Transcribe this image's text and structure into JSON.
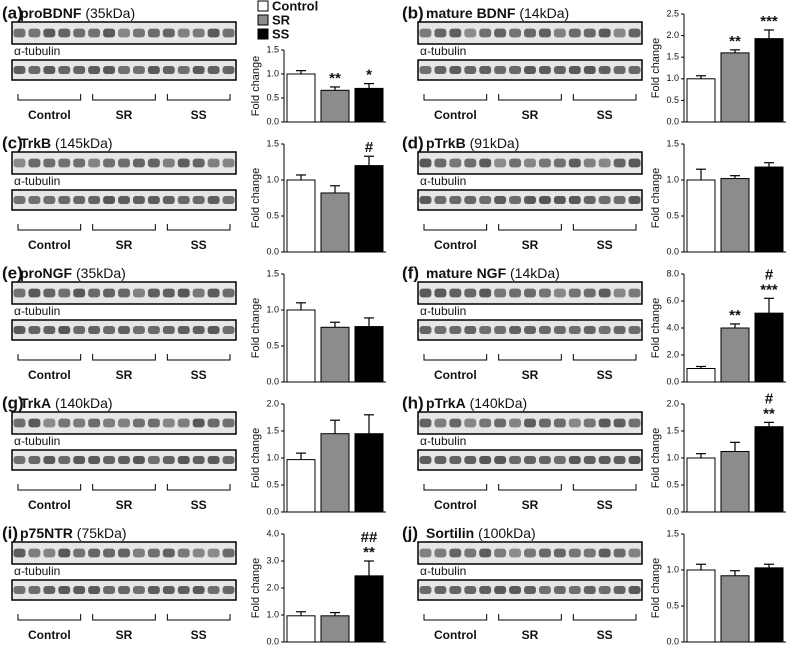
{
  "chart_data": [
    {
      "type": "bar",
      "panel": "(a)",
      "protein": "proBDNF",
      "size": "(35kDa)",
      "loading": "α-tubulin",
      "categories": [
        "Control",
        "SR",
        "SS"
      ],
      "ylabel": "Fold change",
      "values": [
        1.0,
        0.66,
        0.7
      ],
      "errors": [
        0.07,
        0.07,
        0.1
      ],
      "annotations": [
        null,
        "**",
        "*"
      ],
      "colors": [
        "#ffffff",
        "#8c8c8c",
        "#000000"
      ],
      "legend": [
        "Control",
        "SR",
        "SS"
      ],
      "ylim": [
        0,
        1.5
      ],
      "yticks": [
        {
          "value": 0,
          "label": "0.0"
        },
        {
          "value": 0.5,
          "label": "0.5"
        },
        {
          "value": 1,
          "label": "1.0"
        },
        {
          "value": 1.5,
          "label": "1.5"
        }
      ]
    },
    {
      "type": "bar",
      "panel": "(b)",
      "protein": "mature BDNF",
      "size": "(14kDa)",
      "loading": "α-tubulin",
      "categories": [
        "Control",
        "SR",
        "SS"
      ],
      "ylabel": "Fold change",
      "values": [
        1.0,
        1.6,
        1.93
      ],
      "errors": [
        0.07,
        0.07,
        0.2
      ],
      "annotations": [
        null,
        "**",
        "***"
      ],
      "colors": [
        "#ffffff",
        "#8c8c8c",
        "#000000"
      ],
      "ylim": [
        0,
        2.5
      ],
      "yticks": [
        {
          "value": 0,
          "label": "0.0"
        },
        {
          "value": 0.5,
          "label": "0.5"
        },
        {
          "value": 1,
          "label": "1.0"
        },
        {
          "value": 1.5,
          "label": "1.5"
        },
        {
          "value": 2,
          "label": "2.0"
        },
        {
          "value": 2.5,
          "label": "2.5"
        }
      ]
    },
    {
      "type": "bar",
      "panel": "(c)",
      "protein": "TrkB",
      "size": "(145kDa)",
      "loading": "α-tubulin",
      "categories": [
        "Control",
        "SR",
        "SS"
      ],
      "ylabel": "Fold change",
      "values": [
        1.0,
        0.82,
        1.2
      ],
      "errors": [
        0.07,
        0.1,
        0.13
      ],
      "annotations": [
        null,
        null,
        "#"
      ],
      "colors": [
        "#ffffff",
        "#8c8c8c",
        "#000000"
      ],
      "ylim": [
        0,
        1.5
      ],
      "yticks": [
        {
          "value": 0,
          "label": "0.0"
        },
        {
          "value": 0.5,
          "label": "0.5"
        },
        {
          "value": 1,
          "label": "1.0"
        },
        {
          "value": 1.5,
          "label": "1.5"
        }
      ]
    },
    {
      "type": "bar",
      "panel": "(d)",
      "protein": "pTrkB",
      "size": "(91kDa)",
      "loading": "α-tubulin",
      "categories": [
        "Control",
        "SR",
        "SS"
      ],
      "ylabel": "Fold change",
      "values": [
        1.0,
        1.02,
        1.18
      ],
      "errors": [
        0.15,
        0.04,
        0.06
      ],
      "annotations": [
        null,
        null,
        null
      ],
      "colors": [
        "#ffffff",
        "#8c8c8c",
        "#000000"
      ],
      "ylim": [
        0,
        1.5
      ],
      "yticks": [
        {
          "value": 0,
          "label": "0.0"
        },
        {
          "value": 0.5,
          "label": "0.5"
        },
        {
          "value": 1,
          "label": "1.0"
        },
        {
          "value": 1.5,
          "label": "1.5"
        }
      ]
    },
    {
      "type": "bar",
      "panel": "(e)",
      "protein": "proNGF",
      "size": "(35kDa)",
      "loading": "α-tubulin",
      "categories": [
        "Control",
        "SR",
        "SS"
      ],
      "ylabel": "Fold change",
      "values": [
        1.0,
        0.76,
        0.77
      ],
      "errors": [
        0.1,
        0.07,
        0.12
      ],
      "annotations": [
        null,
        null,
        null
      ],
      "colors": [
        "#ffffff",
        "#8c8c8c",
        "#000000"
      ],
      "ylim": [
        0,
        1.5
      ],
      "yticks": [
        {
          "value": 0,
          "label": "0.0"
        },
        {
          "value": 0.5,
          "label": "0.5"
        },
        {
          "value": 1,
          "label": "1.0"
        },
        {
          "value": 1.5,
          "label": "1.5"
        }
      ]
    },
    {
      "type": "bar",
      "panel": "(f)",
      "protein": "mature NGF",
      "size": "(14kDa)",
      "loading": "α-tubulin",
      "categories": [
        "Control",
        "SR",
        "SS"
      ],
      "ylabel": "Fold change",
      "values": [
        1.0,
        4.0,
        5.1
      ],
      "errors": [
        0.15,
        0.3,
        1.1
      ],
      "annotations": [
        null,
        "**",
        [
          "#",
          "***"
        ]
      ],
      "colors": [
        "#ffffff",
        "#8c8c8c",
        "#000000"
      ],
      "ylim": [
        0,
        8
      ],
      "yticks": [
        {
          "value": 0,
          "label": "0.0"
        },
        {
          "value": 2,
          "label": "2.0"
        },
        {
          "value": 4,
          "label": "4.0"
        },
        {
          "value": 6,
          "label": "6.0"
        },
        {
          "value": 8,
          "label": "8.0"
        }
      ]
    },
    {
      "type": "bar",
      "panel": "(g)",
      "protein": "TrkA",
      "size": "(140kDa)",
      "loading": "α-tubulin",
      "categories": [
        "Control",
        "SR",
        "SS"
      ],
      "ylabel": "Fold change",
      "values": [
        0.97,
        1.45,
        1.45
      ],
      "errors": [
        0.12,
        0.25,
        0.35
      ],
      "annotations": [
        null,
        null,
        null
      ],
      "colors": [
        "#ffffff",
        "#8c8c8c",
        "#000000"
      ],
      "ylim": [
        0,
        2
      ],
      "yticks": [
        {
          "value": 0,
          "label": "0.0"
        },
        {
          "value": 0.5,
          "label": "0.5"
        },
        {
          "value": 1,
          "label": "1.0"
        },
        {
          "value": 1.5,
          "label": "1.5"
        },
        {
          "value": 2,
          "label": "2.0"
        }
      ]
    },
    {
      "type": "bar",
      "panel": "(h)",
      "protein": "pTrkA",
      "size": "(140kDa)",
      "loading": "α-tubulin",
      "categories": [
        "Control",
        "SR",
        "SS"
      ],
      "ylabel": "Fold change",
      "values": [
        1.0,
        1.12,
        1.58
      ],
      "errors": [
        0.08,
        0.17,
        0.08
      ],
      "annotations": [
        null,
        null,
        [
          "#",
          "**"
        ]
      ],
      "colors": [
        "#ffffff",
        "#8c8c8c",
        "#000000"
      ],
      "ylim": [
        0,
        2
      ],
      "yticks": [
        {
          "value": 0,
          "label": "0.0"
        },
        {
          "value": 0.5,
          "label": "0.5"
        },
        {
          "value": 1,
          "label": "1.0"
        },
        {
          "value": 1.5,
          "label": "1.5"
        },
        {
          "value": 2,
          "label": "2.0"
        }
      ]
    },
    {
      "type": "bar",
      "panel": "(i)",
      "protein": "p75NTR",
      "size": "(75kDa)",
      "loading": "α-tubulin",
      "categories": [
        "Control",
        "SR",
        "SS"
      ],
      "ylabel": "Fold change",
      "values": [
        0.97,
        0.97,
        2.45
      ],
      "errors": [
        0.15,
        0.12,
        0.55
      ],
      "annotations": [
        null,
        null,
        [
          "##",
          "**"
        ]
      ],
      "colors": [
        "#ffffff",
        "#8c8c8c",
        "#000000"
      ],
      "ylim": [
        0,
        4
      ],
      "yticks": [
        {
          "value": 0,
          "label": "0.0"
        },
        {
          "value": 1,
          "label": "1.0"
        },
        {
          "value": 2,
          "label": "2.0"
        },
        {
          "value": 3,
          "label": "3.0"
        },
        {
          "value": 4,
          "label": "4.0"
        }
      ]
    },
    {
      "type": "bar",
      "panel": "(j)",
      "protein": "Sortilin",
      "size": "(100kDa)",
      "loading": "α-tubulin",
      "categories": [
        "Control",
        "SR",
        "SS"
      ],
      "ylabel": "Fold change",
      "values": [
        1.0,
        0.92,
        1.03
      ],
      "errors": [
        0.08,
        0.07,
        0.05
      ],
      "annotations": [
        null,
        null,
        null
      ],
      "colors": [
        "#ffffff",
        "#8c8c8c",
        "#000000"
      ],
      "ylim": [
        0,
        1.5
      ],
      "yticks": [
        {
          "value": 0,
          "label": "0.0"
        },
        {
          "value": 0.5,
          "label": "0.5"
        },
        {
          "value": 1,
          "label": "1.0"
        },
        {
          "value": 1.5,
          "label": "1.5"
        }
      ]
    }
  ]
}
